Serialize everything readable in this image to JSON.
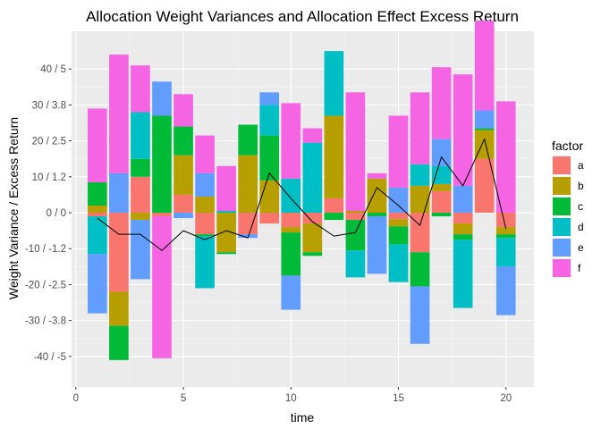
{
  "chart_data": {
    "type": "bar",
    "stacked": true,
    "title": "Allocation Weight Variances and Allocation Effect Excess Return",
    "xlabel": "time",
    "ylabel": "Weight Variance / Excess Return",
    "xlim": [
      -0.2,
      21.3
    ],
    "ylim": [
      -48.5,
      50.5
    ],
    "x_ticks": [
      0,
      5,
      10,
      15,
      20
    ],
    "y_ticks": [
      {
        "value": 40,
        "label": "40 / 5"
      },
      {
        "value": 30,
        "label": "30 / 3.8"
      },
      {
        "value": 20,
        "label": "20 / 2.5"
      },
      {
        "value": 10,
        "label": "10 / 1.2"
      },
      {
        "value": 0,
        "label": "0 / 0"
      },
      {
        "value": -10,
        "label": "-10 / -1.2"
      },
      {
        "value": -20,
        "label": "-20 / -2.5"
      },
      {
        "value": -30,
        "label": "-30 / -3.8"
      },
      {
        "value": -40,
        "label": "-40 / -5"
      }
    ],
    "grid": true,
    "legend": {
      "title": "factor",
      "position": "right"
    },
    "x": [
      1,
      2,
      3,
      4,
      5,
      6,
      7,
      8,
      9,
      10,
      11,
      12,
      13,
      14,
      15,
      16,
      17,
      18,
      19,
      20
    ],
    "series": [
      {
        "name": "a",
        "color": "#F8766D",
        "values": [
          -1,
          -22,
          10,
          -1,
          5,
          -6,
          0,
          -6,
          -3,
          -4,
          -3,
          4,
          -2,
          0,
          -1.8,
          -11,
          6,
          -3,
          15,
          -4
        ]
      },
      {
        "name": "b",
        "color": "#B79F00",
        "values": [
          2,
          -9.5,
          -2,
          0,
          11,
          4.5,
          -11,
          16,
          9,
          -1.5,
          -8,
          23,
          0.5,
          9.5,
          -2,
          7.5,
          2,
          -3,
          8,
          -2
        ]
      },
      {
        "name": "c",
        "color": "#00BA38",
        "values": [
          6.5,
          -9.5,
          5,
          27,
          8,
          -0.5,
          -0.5,
          8.5,
          12.5,
          -12,
          -1,
          -2,
          -8.5,
          -1,
          -5,
          -9.5,
          -1,
          -1.5,
          0.5,
          -1
        ]
      },
      {
        "name": "d",
        "color": "#00BFC4",
        "values": [
          -10.5,
          0,
          13,
          0,
          0,
          -14.5,
          0.5,
          0,
          8.5,
          9.5,
          19.5,
          18,
          -7.5,
          0,
          -10.5,
          6,
          5,
          -19,
          0,
          -8
        ]
      },
      {
        "name": "e",
        "color": "#619CFF",
        "values": [
          -16.5,
          11,
          -16.5,
          9.5,
          -1.5,
          6.5,
          0,
          -1,
          3.5,
          -9.5,
          0,
          0,
          0,
          -16,
          7,
          -16,
          7.5,
          7.5,
          5,
          -13.5
        ]
      },
      {
        "name": "f",
        "color": "#F564E3",
        "values": [
          20.5,
          33,
          13,
          -39.5,
          9,
          10.5,
          12.5,
          0,
          0,
          21,
          4,
          0,
          33,
          1.5,
          20,
          20,
          20,
          31,
          25,
          31
        ]
      }
    ],
    "line": {
      "name": "",
      "color": "#000000",
      "values": [
        -1.5,
        -6,
        -6,
        -10.5,
        -5,
        -7.5,
        -5,
        -7,
        11,
        4,
        -2.5,
        -6.5,
        -5.5,
        7,
        2,
        -3.5,
        15.5,
        7.5,
        20.5,
        -4.5
      ]
    }
  }
}
